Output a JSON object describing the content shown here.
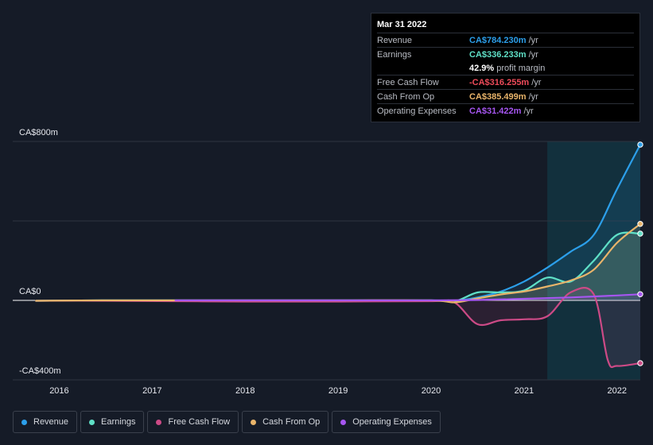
{
  "tooltip": {
    "date": "Mar 31 2022",
    "rows": [
      {
        "label": "Revenue",
        "value": "CA$784.230m",
        "unit": "/yr",
        "color": "#2c9fea"
      },
      {
        "label": "Earnings",
        "value": "CA$336.233m",
        "unit": "/yr",
        "color": "#5fe0c7"
      },
      {
        "label": "",
        "value": "42.9%",
        "unit": "profit margin",
        "color": "#ffffff"
      },
      {
        "label": "Free Cash Flow",
        "value": "-CA$316.255m",
        "unit": "/yr",
        "color": "#ee4b5a"
      },
      {
        "label": "Cash From Op",
        "value": "CA$385.499m",
        "unit": "/yr",
        "color": "#e9b46a"
      },
      {
        "label": "Operating Expenses",
        "value": "CA$31.422m",
        "unit": "/yr",
        "color": "#a656f1"
      }
    ]
  },
  "legend": [
    {
      "name": "Revenue",
      "color": "#2c9fea"
    },
    {
      "name": "Earnings",
      "color": "#5fe0c7"
    },
    {
      "name": "Free Cash Flow",
      "color": "#cc4a86"
    },
    {
      "name": "Cash From Op",
      "color": "#e9b46a"
    },
    {
      "name": "Operating Expenses",
      "color": "#a656f1"
    }
  ],
  "chart_data": {
    "type": "line",
    "y_tick_labels": [
      "CA$800m",
      "CA$0",
      "-CA$400m"
    ],
    "y_ticks": [
      800,
      0,
      -400
    ],
    "ylim": [
      -400,
      800
    ],
    "xlim": [
      2015.5,
      2022.25
    ],
    "x_tick_labels": [
      "2016",
      "2017",
      "2018",
      "2019",
      "2020",
      "2021",
      "2022"
    ],
    "x_ticks": [
      2016,
      2017,
      2018,
      2019,
      2020,
      2021,
      2022
    ],
    "highlight_start": 2021.25,
    "grid": true,
    "series": [
      {
        "name": "Revenue",
        "color": "#2c9fea",
        "x": [
          2015.75,
          2016.5,
          2017.25,
          2018,
          2019,
          2020,
          2020.25,
          2020.5,
          2020.75,
          2021,
          2021.25,
          2021.5,
          2021.75,
          2022,
          2022.25
        ],
        "y": [
          -2,
          0,
          0,
          0,
          0,
          0,
          -2,
          15,
          45,
          95,
          165,
          245,
          330,
          560,
          784
        ]
      },
      {
        "name": "Earnings",
        "color": "#5fe0c7",
        "x": [
          2015.75,
          2016.5,
          2017.25,
          2018,
          2019,
          2020,
          2020.25,
          2020.5,
          2020.75,
          2021,
          2021.25,
          2021.5,
          2021.75,
          2022,
          2022.25
        ],
        "y": [
          -2,
          0,
          0,
          0,
          0,
          0,
          -5,
          40,
          40,
          50,
          115,
          95,
          200,
          330,
          336
        ]
      },
      {
        "name": "Free Cash Flow",
        "color": "#cc4a86",
        "x": [
          2015.75,
          2016.5,
          2017.25,
          2018,
          2019,
          2020,
          2020.25,
          2020.5,
          2020.75,
          2021,
          2021.25,
          2021.5,
          2021.75,
          2021.9,
          2022,
          2022.25
        ],
        "y": [
          -2,
          -2,
          -4,
          -6,
          -6,
          -4,
          -10,
          -120,
          -100,
          -95,
          -80,
          40,
          30,
          -300,
          -330,
          -316
        ]
      },
      {
        "name": "Cash From Op",
        "color": "#e9b46a",
        "x": [
          2015.75,
          2016.5,
          2017.25,
          2018,
          2019,
          2020,
          2020.25,
          2020.5,
          2020.75,
          2021,
          2021.25,
          2021.5,
          2021.75,
          2022,
          2022.25
        ],
        "y": [
          -2,
          0,
          0,
          0,
          0,
          0,
          -10,
          10,
          30,
          45,
          70,
          100,
          155,
          290,
          385
        ]
      },
      {
        "name": "Operating Expenses",
        "color": "#a656f1",
        "x": [
          2017.25,
          2018,
          2019,
          2020,
          2020.5,
          2021,
          2021.5,
          2022,
          2022.25
        ],
        "y": [
          0,
          0,
          0,
          0,
          2,
          8,
          15,
          25,
          31
        ]
      }
    ]
  }
}
